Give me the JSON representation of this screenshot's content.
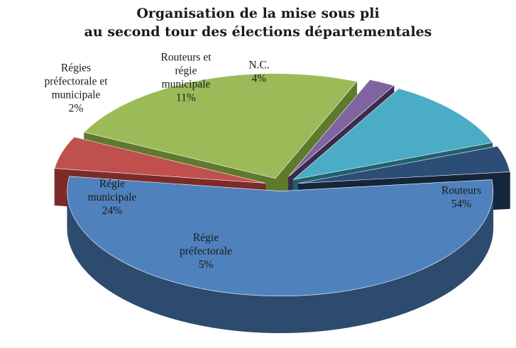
{
  "chart_data": {
    "type": "pie",
    "title": [
      "Organisation de la mise sous pli",
      "au second tour des élections départementales"
    ],
    "exploded_3d": true,
    "slices": [
      {
        "label": [
          "Routeurs",
          "54%"
        ],
        "value": 54,
        "color": "#4f81bd",
        "side": "#2d4b6f",
        "label_color": "#1a1a1a"
      },
      {
        "label": [
          "Régie",
          "préfectorale",
          "5%"
        ],
        "value": 5,
        "color": "#c0504d",
        "side": "#7c2b29",
        "label_color": "#1a1a1a"
      },
      {
        "label": [
          "Régie",
          "municipale",
          "24%"
        ],
        "value": 24,
        "color": "#9bbb59",
        "side": "#5f7a2c",
        "label_color": "#1a1a1a"
      },
      {
        "label": [
          "Régies",
          "préfectorale et",
          "municipale",
          "2%"
        ],
        "value": 2,
        "color": "#8064a2",
        "side": "#3a2c4d",
        "label_color": "#1a1a1a"
      },
      {
        "label": [
          "Routeurs et",
          "régie",
          "municipale",
          "11%"
        ],
        "value": 11,
        "color": "#4bacc6",
        "side": "#22606f",
        "label_color": "#1a1a1a"
      },
      {
        "label": [
          "N.C.",
          "4%"
        ],
        "value": 4,
        "color": "#2c4d75",
        "side": "#15263b",
        "label_color": "#1a1a1a"
      }
    ]
  }
}
